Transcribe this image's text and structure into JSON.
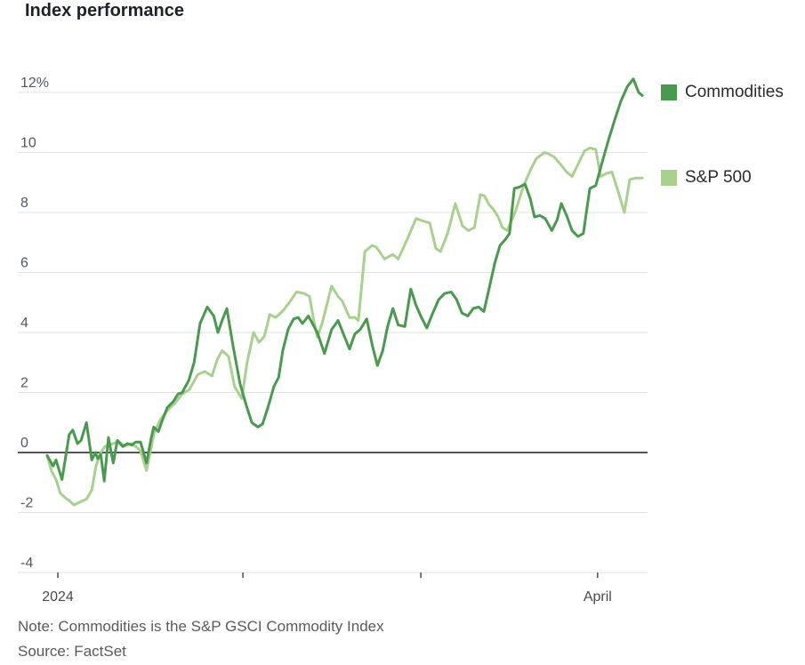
{
  "title": "Index performance",
  "note": "Note: Commodities is the S&P GSCI Commodity Index",
  "source": "Source: FactSet",
  "chart_data": {
    "type": "line",
    "title": "Index performance",
    "unit": "percent",
    "grid": "horizontal",
    "legend_position": "right",
    "y_axis": {
      "min": -4,
      "max": 12,
      "ticks": [
        {
          "v": 12,
          "label": "12%"
        },
        {
          "v": 10,
          "label": "10"
        },
        {
          "v": 8,
          "label": "8"
        },
        {
          "v": 6,
          "label": "6"
        },
        {
          "v": 4,
          "label": "4"
        },
        {
          "v": 2,
          "label": "2"
        },
        {
          "v": 0,
          "label": "0"
        },
        {
          "v": -2,
          "label": "-2"
        },
        {
          "v": -4,
          "label": "-4"
        }
      ]
    },
    "x_axis": {
      "start_label": "2024",
      "end_label": "April",
      "ticks": [
        {
          "t": 0.018,
          "label": "2024"
        },
        {
          "t": 0.329,
          "label": ""
        },
        {
          "t": 0.628,
          "label": ""
        },
        {
          "t": 0.925,
          "label": "April"
        }
      ]
    },
    "series": [
      {
        "name": "S&P 500",
        "color": "#a8d18d",
        "points": [
          [
            0.0,
            -0.1
          ],
          [
            0.007,
            -0.6
          ],
          [
            0.015,
            -0.9
          ],
          [
            0.022,
            -1.35
          ],
          [
            0.03,
            -1.5
          ],
          [
            0.037,
            -1.6
          ],
          [
            0.045,
            -1.75
          ],
          [
            0.055,
            -1.65
          ],
          [
            0.066,
            -1.55
          ],
          [
            0.075,
            -1.25
          ],
          [
            0.082,
            -0.45
          ],
          [
            0.09,
            0.0
          ],
          [
            0.097,
            0.2
          ],
          [
            0.105,
            0.27
          ],
          [
            0.112,
            0.3
          ],
          [
            0.12,
            0.37
          ],
          [
            0.13,
            0.22
          ],
          [
            0.141,
            0.3
          ],
          [
            0.149,
            0.2
          ],
          [
            0.157,
            0.05
          ],
          [
            0.167,
            -0.6
          ],
          [
            0.179,
            0.6
          ],
          [
            0.19,
            1.1
          ],
          [
            0.202,
            1.4
          ],
          [
            0.215,
            1.65
          ],
          [
            0.227,
            1.95
          ],
          [
            0.239,
            2.1
          ],
          [
            0.253,
            2.6
          ],
          [
            0.265,
            2.7
          ],
          [
            0.277,
            2.55
          ],
          [
            0.286,
            3.1
          ],
          [
            0.294,
            3.4
          ],
          [
            0.305,
            3.2
          ],
          [
            0.315,
            2.2
          ],
          [
            0.327,
            1.8
          ],
          [
            0.336,
            3.0
          ],
          [
            0.347,
            4.0
          ],
          [
            0.356,
            3.67
          ],
          [
            0.365,
            3.87
          ],
          [
            0.374,
            4.6
          ],
          [
            0.384,
            4.5
          ],
          [
            0.395,
            4.7
          ],
          [
            0.407,
            5.0
          ],
          [
            0.419,
            5.35
          ],
          [
            0.432,
            5.3
          ],
          [
            0.441,
            5.2
          ],
          [
            0.448,
            4.4
          ],
          [
            0.454,
            3.85
          ],
          [
            0.462,
            4.3
          ],
          [
            0.471,
            5.0
          ],
          [
            0.478,
            5.55
          ],
          [
            0.489,
            5.2
          ],
          [
            0.496,
            5.05
          ],
          [
            0.508,
            4.5
          ],
          [
            0.517,
            4.5
          ],
          [
            0.523,
            4.4
          ],
          [
            0.534,
            6.7
          ],
          [
            0.546,
            6.9
          ],
          [
            0.553,
            6.85
          ],
          [
            0.567,
            6.45
          ],
          [
            0.576,
            6.55
          ],
          [
            0.581,
            6.6
          ],
          [
            0.59,
            6.45
          ],
          [
            0.605,
            7.1
          ],
          [
            0.62,
            7.8
          ],
          [
            0.634,
            7.7
          ],
          [
            0.643,
            7.65
          ],
          [
            0.653,
            6.8
          ],
          [
            0.661,
            6.7
          ],
          [
            0.673,
            7.3
          ],
          [
            0.686,
            8.3
          ],
          [
            0.698,
            7.55
          ],
          [
            0.708,
            7.4
          ],
          [
            0.718,
            7.5
          ],
          [
            0.728,
            8.6
          ],
          [
            0.735,
            8.55
          ],
          [
            0.743,
            8.25
          ],
          [
            0.75,
            8.1
          ],
          [
            0.758,
            7.85
          ],
          [
            0.765,
            7.5
          ],
          [
            0.773,
            7.4
          ],
          [
            0.78,
            7.7
          ],
          [
            0.788,
            8.1
          ],
          [
            0.795,
            8.55
          ],
          [
            0.803,
            9.0
          ],
          [
            0.813,
            9.45
          ],
          [
            0.822,
            9.8
          ],
          [
            0.836,
            10.0
          ],
          [
            0.843,
            9.95
          ],
          [
            0.852,
            9.85
          ],
          [
            0.863,
            9.6
          ],
          [
            0.873,
            9.35
          ],
          [
            0.882,
            9.2
          ],
          [
            0.892,
            9.6
          ],
          [
            0.903,
            10.05
          ],
          [
            0.912,
            10.15
          ],
          [
            0.922,
            10.1
          ],
          [
            0.93,
            9.2
          ],
          [
            0.94,
            9.3
          ],
          [
            0.949,
            9.35
          ],
          [
            0.958,
            8.8
          ],
          [
            0.97,
            8.0
          ],
          [
            0.979,
            9.1
          ],
          [
            0.99,
            9.15
          ],
          [
            1.0,
            9.15
          ]
        ]
      },
      {
        "name": "Commodities",
        "color": "#489a4c",
        "points": [
          [
            0.0,
            -0.1
          ],
          [
            0.01,
            -0.45
          ],
          [
            0.015,
            -0.25
          ],
          [
            0.025,
            -0.9
          ],
          [
            0.037,
            0.6
          ],
          [
            0.043,
            0.75
          ],
          [
            0.051,
            0.3
          ],
          [
            0.057,
            0.4
          ],
          [
            0.066,
            1.0
          ],
          [
            0.075,
            -0.25
          ],
          [
            0.081,
            0.0
          ],
          [
            0.085,
            -0.2
          ],
          [
            0.09,
            -0.05
          ],
          [
            0.096,
            -0.95
          ],
          [
            0.103,
            0.5
          ],
          [
            0.111,
            -0.35
          ],
          [
            0.118,
            0.4
          ],
          [
            0.127,
            0.2
          ],
          [
            0.135,
            0.3
          ],
          [
            0.142,
            0.25
          ],
          [
            0.149,
            0.35
          ],
          [
            0.157,
            0.35
          ],
          [
            0.167,
            -0.35
          ],
          [
            0.175,
            0.5
          ],
          [
            0.179,
            0.85
          ],
          [
            0.187,
            0.7
          ],
          [
            0.194,
            1.1
          ],
          [
            0.202,
            1.5
          ],
          [
            0.212,
            1.7
          ],
          [
            0.22,
            1.95
          ],
          [
            0.227,
            2.0
          ],
          [
            0.238,
            2.4
          ],
          [
            0.247,
            3.0
          ],
          [
            0.257,
            4.3
          ],
          [
            0.269,
            4.85
          ],
          [
            0.28,
            4.55
          ],
          [
            0.287,
            4.0
          ],
          [
            0.294,
            4.4
          ],
          [
            0.302,
            4.8
          ],
          [
            0.312,
            3.6
          ],
          [
            0.324,
            2.3
          ],
          [
            0.335,
            1.55
          ],
          [
            0.344,
            1.0
          ],
          [
            0.354,
            0.85
          ],
          [
            0.362,
            0.95
          ],
          [
            0.371,
            1.5
          ],
          [
            0.381,
            2.2
          ],
          [
            0.389,
            2.5
          ],
          [
            0.396,
            3.4
          ],
          [
            0.405,
            4.1
          ],
          [
            0.414,
            4.45
          ],
          [
            0.422,
            4.5
          ],
          [
            0.429,
            4.3
          ],
          [
            0.439,
            4.55
          ],
          [
            0.454,
            4.0
          ],
          [
            0.466,
            3.3
          ],
          [
            0.478,
            4.1
          ],
          [
            0.489,
            4.4
          ],
          [
            0.499,
            3.9
          ],
          [
            0.508,
            3.45
          ],
          [
            0.517,
            3.95
          ],
          [
            0.526,
            4.1
          ],
          [
            0.537,
            4.45
          ],
          [
            0.546,
            3.6
          ],
          [
            0.555,
            2.9
          ],
          [
            0.564,
            3.4
          ],
          [
            0.572,
            4.2
          ],
          [
            0.581,
            4.8
          ],
          [
            0.59,
            4.25
          ],
          [
            0.601,
            4.2
          ],
          [
            0.611,
            5.45
          ],
          [
            0.62,
            4.9
          ],
          [
            0.629,
            4.5
          ],
          [
            0.638,
            4.15
          ],
          [
            0.647,
            4.6
          ],
          [
            0.658,
            5.1
          ],
          [
            0.668,
            5.3
          ],
          [
            0.679,
            5.35
          ],
          [
            0.688,
            5.1
          ],
          [
            0.697,
            4.65
          ],
          [
            0.707,
            4.55
          ],
          [
            0.716,
            4.8
          ],
          [
            0.725,
            4.85
          ],
          [
            0.734,
            4.7
          ],
          [
            0.743,
            5.5
          ],
          [
            0.752,
            6.3
          ],
          [
            0.761,
            6.9
          ],
          [
            0.77,
            7.1
          ],
          [
            0.777,
            7.3
          ],
          [
            0.785,
            8.8
          ],
          [
            0.794,
            8.85
          ],
          [
            0.803,
            8.95
          ],
          [
            0.812,
            8.45
          ],
          [
            0.819,
            7.85
          ],
          [
            0.828,
            7.9
          ],
          [
            0.837,
            7.8
          ],
          [
            0.848,
            7.4
          ],
          [
            0.857,
            7.75
          ],
          [
            0.864,
            8.3
          ],
          [
            0.873,
            7.9
          ],
          [
            0.882,
            7.4
          ],
          [
            0.892,
            7.2
          ],
          [
            0.901,
            7.3
          ],
          [
            0.912,
            8.8
          ],
          [
            0.922,
            8.9
          ],
          [
            0.933,
            9.7
          ],
          [
            0.943,
            10.4
          ],
          [
            0.954,
            11.1
          ],
          [
            0.964,
            11.7
          ],
          [
            0.975,
            12.2
          ],
          [
            0.985,
            12.45
          ],
          [
            0.994,
            12.0
          ],
          [
            1.0,
            11.9
          ]
        ]
      }
    ]
  },
  "legend": {
    "commodities_label": "Commodities",
    "sp500_label": "S&P 500"
  }
}
